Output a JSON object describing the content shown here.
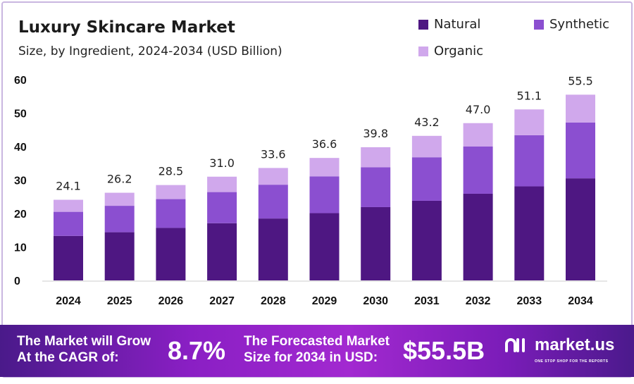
{
  "chart_data": {
    "type": "bar",
    "stacked": true,
    "title": "Luxury Skincare Market",
    "subtitle": "Size, by Ingredient, 2024-2034 (USD Billion)",
    "categories": [
      "2024",
      "2025",
      "2026",
      "2027",
      "2028",
      "2029",
      "2030",
      "2031",
      "2032",
      "2033",
      "2034"
    ],
    "series": [
      {
        "name": "Natural",
        "color": "#4e1782",
        "values": [
          13.3,
          14.4,
          15.7,
          17.1,
          18.5,
          20.1,
          21.9,
          23.8,
          25.9,
          28.1,
          30.5
        ]
      },
      {
        "name": "Synthetic",
        "color": "#8b4fd0",
        "values": [
          7.2,
          7.9,
          8.6,
          9.3,
          10.1,
          11.0,
          11.9,
          13.0,
          14.1,
          15.3,
          16.7
        ]
      },
      {
        "name": "Organic",
        "color": "#d0a8ec",
        "values": [
          3.6,
          3.9,
          4.2,
          4.6,
          5.0,
          5.5,
          6.0,
          6.4,
          7.0,
          7.7,
          8.3
        ]
      }
    ],
    "totals": [
      "24.1",
      "26.2",
      "28.5",
      "31.0",
      "33.6",
      "36.6",
      "39.8",
      "43.2",
      "47.0",
      "51.1",
      "55.5"
    ],
    "ylim": [
      0,
      60
    ],
    "yticks": [
      "0",
      "10",
      "20",
      "30",
      "40",
      "50",
      "60"
    ],
    "grid": false,
    "legend": "top-right"
  },
  "banner": {
    "cagr_label_1": "The Market will Grow",
    "cagr_label_2": "At the CAGR of:",
    "cagr_value": "8.7%",
    "forecast_label_1": "The Forecasted Market",
    "forecast_label_2": "Size for 2034 in USD:",
    "forecast_value": "$55.5B",
    "logo_name": "market.us",
    "logo_tagline": "ONE STOP SHOP FOR THE REPORTS"
  }
}
